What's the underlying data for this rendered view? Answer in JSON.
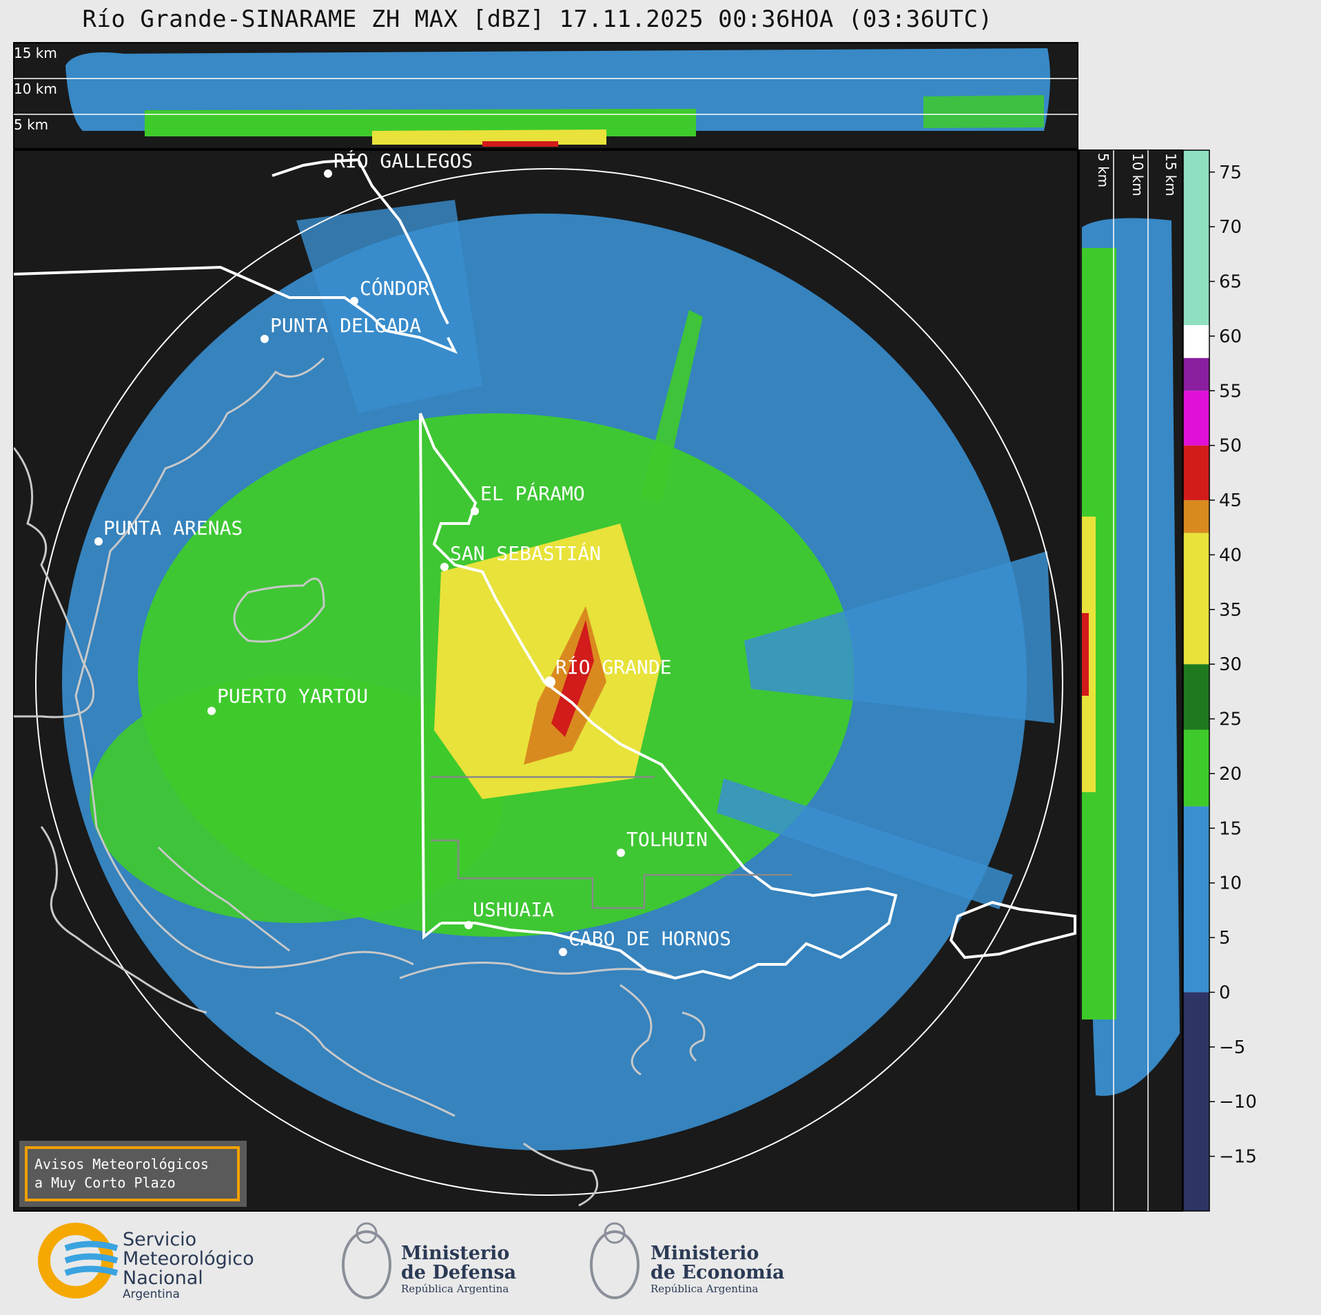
{
  "title": "Río Grande-SINARAME ZH MAX [dBZ] 17.11.2025 00:36HOA (03:36UTC)",
  "top_panel": {
    "height_labels": [
      "15 km",
      "10 km",
      "5 km"
    ]
  },
  "side_panel": {
    "height_labels": [
      "5 km",
      "10 km",
      "15 km"
    ]
  },
  "places": [
    {
      "name": "RÍO GALLEGOS"
    },
    {
      "name": "CÓNDOR"
    },
    {
      "name": "PUNTA DELGADA"
    },
    {
      "name": "EL PÁRAMO"
    },
    {
      "name": "PUNTA ARENAS"
    },
    {
      "name": "SAN SEBASTIÁN"
    },
    {
      "name": "RÍO GRANDE"
    },
    {
      "name": "PUERTO YARTOU"
    },
    {
      "name": "TOLHUIN"
    },
    {
      "name": "USHUAIA"
    },
    {
      "name": "CABO DE HORNOS"
    }
  ],
  "colorbar": {
    "unit": "dBZ",
    "ticks": [
      "75",
      "70",
      "65",
      "60",
      "55",
      "50",
      "45",
      "40",
      "35",
      "30",
      "25",
      "20",
      "15",
      "10",
      "5",
      "0",
      "−5",
      "−10",
      "−15"
    ],
    "range": [
      -20,
      77
    ],
    "colors": {
      "low": "#2e3565",
      "blue": "#3a8fd0",
      "green": "#3fca2b",
      "darkgreen": "#1f7a1f",
      "yellow": "#e8e23a",
      "orange": "#d98a1f",
      "red": "#d21b1b",
      "magenta": "#e010d8",
      "purple": "#8a1fa0",
      "white": "#ffffff",
      "mint": "#8fe0c0"
    }
  },
  "notice": {
    "line1": "Avisos Meteorológicos",
    "line2": "a Muy Corto Plazo"
  },
  "logos": {
    "smn": {
      "line1": "Servicio",
      "line2": "Meteorológico",
      "line3": "Nacional",
      "line4": "Argentina"
    },
    "defensa": {
      "line1": "Ministerio",
      "line2": "de Defensa",
      "line3": "República Argentina"
    },
    "economia": {
      "line1": "Ministerio",
      "line2": "de Economía",
      "line3": "República Argentina"
    }
  }
}
